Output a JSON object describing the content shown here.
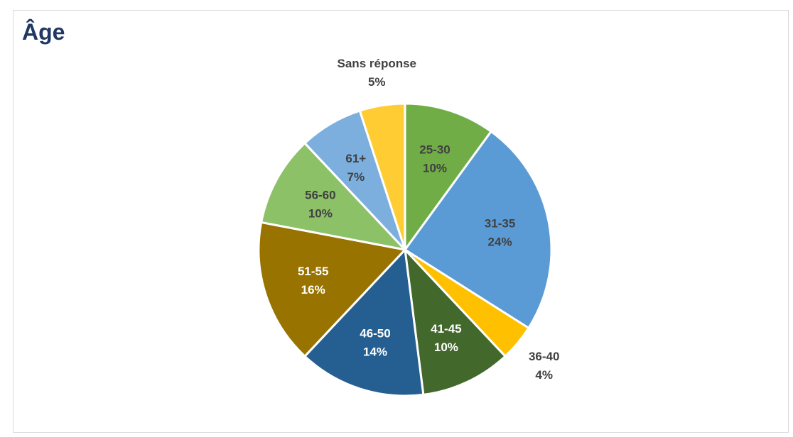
{
  "chart_data": {
    "type": "pie",
    "title": "Âge",
    "start_angle_deg": 0,
    "direction": "clockwise",
    "slices": [
      {
        "label": "25-30",
        "value": 10,
        "value_text": "10%",
        "color": "#70ad47",
        "text_color": "#404040",
        "label_position": "inside"
      },
      {
        "label": "31-35",
        "value": 24,
        "value_text": "24%",
        "color": "#5b9bd5",
        "text_color": "#404040",
        "label_position": "inside"
      },
      {
        "label": "36-40",
        "value": 4,
        "value_text": "4%",
        "color": "#ffc000",
        "text_color": "#404040",
        "label_position": "outside"
      },
      {
        "label": "41-45",
        "value": 10,
        "value_text": "10%",
        "color": "#43682b",
        "text_color": "#ffffff",
        "label_position": "inside"
      },
      {
        "label": "46-50",
        "value": 14,
        "value_text": "14%",
        "color": "#255e91",
        "text_color": "#ffffff",
        "label_position": "inside"
      },
      {
        "label": "51-55",
        "value": 16,
        "value_text": "16%",
        "color": "#997300",
        "text_color": "#ffffff",
        "label_position": "inside"
      },
      {
        "label": "56-60",
        "value": 10,
        "value_text": "10%",
        "color": "#8cc168",
        "text_color": "#404040",
        "label_position": "inside"
      },
      {
        "label": "61+",
        "value": 7,
        "value_text": "7%",
        "color": "#7cafdd",
        "text_color": "#404040",
        "label_position": "inside"
      },
      {
        "label": "Sans réponse",
        "value": 5,
        "value_text": "5%",
        "color": "#ffcd33",
        "text_color": "#404040",
        "label_position": "outside"
      }
    ]
  }
}
